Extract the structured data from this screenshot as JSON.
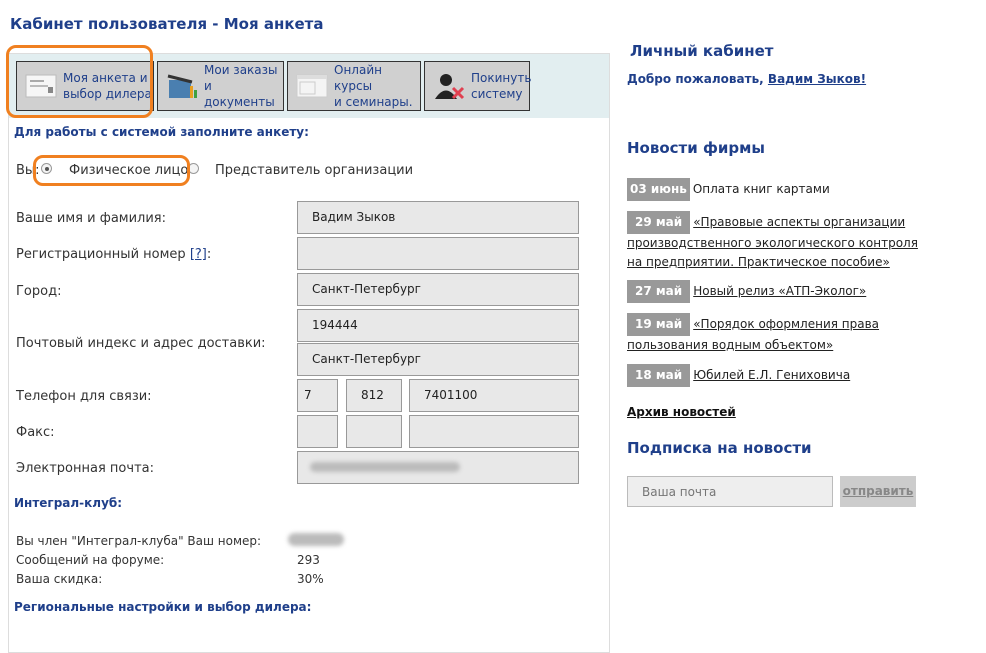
{
  "title": "Кабинет пользователя - Моя анкета",
  "toolbar": [
    {
      "label1": "Моя анкета и",
      "label2": "выбор дилера",
      "icon": "profile-form-icon"
    },
    {
      "label1": "Мои заказы",
      "label2": "и документы",
      "icon": "basket-chart-icon"
    },
    {
      "label1": "Онлайн курсы",
      "label2": "и семинары.",
      "icon": "window-icon"
    },
    {
      "label1": "Покинуть",
      "label2": "систему",
      "icon": "user-logout-icon"
    }
  ],
  "form": {
    "intro": "Для работы с системой заполните анкету:",
    "you": "Вы:",
    "radio_person": "Физическое лицо",
    "radio_org": "Представитель организации",
    "name_label": "Ваше имя и фамилия:",
    "name_value": "Вадим Зыков",
    "reg_label": "Регистрационный номер",
    "reg_help": "[?]",
    "reg_colon": ":",
    "city_label": "Город:",
    "city_value": "Санкт-Петербург",
    "address_label": "Почтовый индекс и адрес доставки:",
    "zip_value": "194444",
    "address_value": "Санкт-Петербург",
    "phone_label": "Телефон для связи:",
    "phone_country": "7",
    "phone_code": "812",
    "phone_number": "7401100",
    "fax_label": "Факс:",
    "email_label": "Электронная почта:"
  },
  "club": {
    "title": "Интеграл-клуб:",
    "member_label": "Вы член \"Интеграл-клуба\" Ваш номер:",
    "forum_label": "Сообщений на форуме:",
    "forum_value": "293",
    "discount_label": "Ваша скидка:",
    "discount_value": "30%"
  },
  "regional": "Региональные настройки и выбор дилера:",
  "sidebar": {
    "cabinet_title": "Личный кабинет",
    "welcome": "Добро пожаловать,",
    "user": "Вадим Зыков!",
    "news_title": "Новости фирмы",
    "news": [
      {
        "date": "03 июнь",
        "text": "Оплата книг картами"
      },
      {
        "date": "29 май",
        "text": "«Правовые аспекты организации производственного экологического контроля на предприятии. Практическое пособие»"
      },
      {
        "date": "27 май",
        "text": "Новый релиз «АТП-Эколог»"
      },
      {
        "date": "19 май",
        "text": "«Порядок оформления права пользования водным объектом»"
      },
      {
        "date": "18 май",
        "text": "Юбилей Е.Л. Гениховича"
      }
    ],
    "archive": "Архив новостей",
    "subscribe_title": "Подписка на новости",
    "email_placeholder": "Ваша почта",
    "send": "отправить"
  }
}
